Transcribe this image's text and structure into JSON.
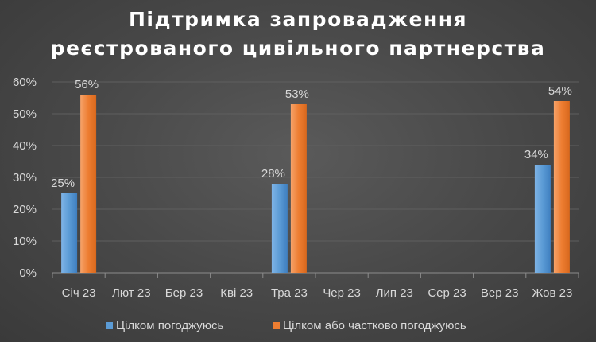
{
  "chart_data": {
    "type": "bar",
    "title_lines": [
      "Підтримка запровадження",
      "реєстрованого цивільного партнерства"
    ],
    "categories": [
      "Січ 23",
      "Лют 23",
      "Бер 23",
      "Кві 23",
      "Тра 23",
      "Чер 23",
      "Лип 23",
      "Сер 23",
      "Вер 23",
      "Жов 23"
    ],
    "series": [
      {
        "name": "Цілком погоджуюсь",
        "color": "#5b9bd5",
        "values": [
          25,
          null,
          null,
          null,
          28,
          null,
          null,
          null,
          null,
          34
        ]
      },
      {
        "name": "Цілком або частково погоджуюсь",
        "color": "#ed7d31",
        "values": [
          56,
          null,
          null,
          null,
          53,
          null,
          null,
          null,
          null,
          54
        ]
      }
    ],
    "ylim": [
      0,
      60
    ],
    "yticks": [
      "0%",
      "10%",
      "20%",
      "30%",
      "40%",
      "50%",
      "60%"
    ],
    "data_label_suffix": "%",
    "grid": true,
    "legend_position": "bottom"
  }
}
